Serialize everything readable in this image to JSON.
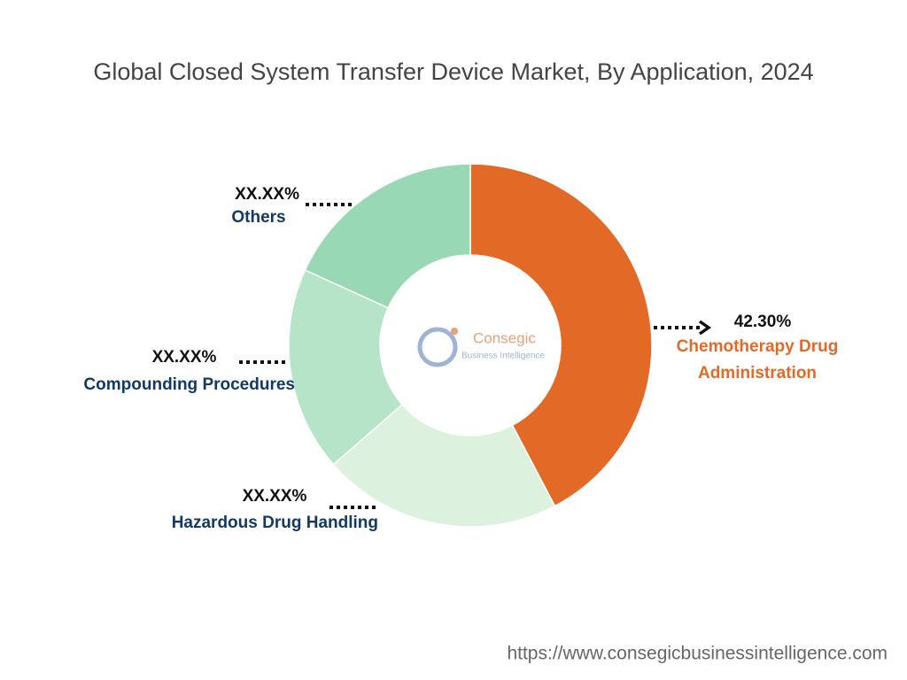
{
  "chart_data": {
    "type": "donut",
    "title": "Global Closed System Transfer Device Market, By Application, 2024",
    "categories": [
      "Chemotherapy Drug Administration",
      "Hazardous Drug Handling",
      "Compounding Procedures",
      "Others"
    ],
    "values": [
      42.3,
      21.3,
      18.2,
      18.2
    ],
    "value_labels": [
      "42.30%",
      "XX.XX%",
      "XX.XX%",
      "XX.XX%"
    ],
    "colors": [
      "#e36a26",
      "#dcf2df",
      "#b5e4c8",
      "#98d8b4"
    ],
    "logo": {
      "name": "Consegic",
      "tagline": "Business Intelligence"
    },
    "source": "https://www.consegicbusinessintelligence.com"
  }
}
